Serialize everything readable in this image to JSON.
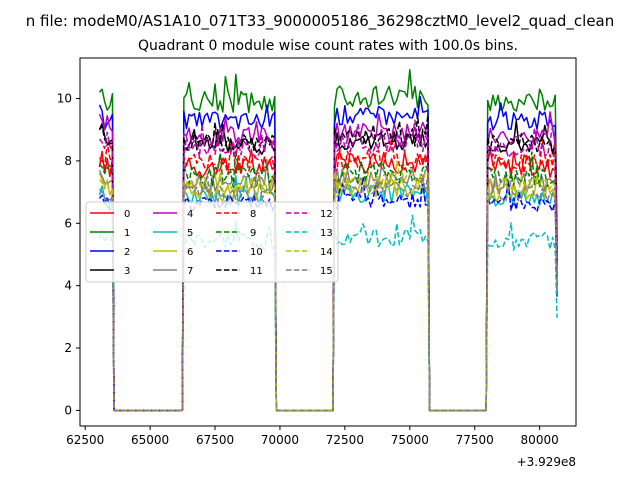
{
  "chart_data": {
    "type": "line",
    "suptitle": "n file: modeM0/AS1A10_071T33_9000005186_36298cztM0_level2_quad_clean",
    "title": "Quadrant 0 module wise count rates with 100.0s bins.",
    "xlabel": "",
    "ylabel": "",
    "x_offset_label": "+3.929e8",
    "xlim": [
      62300,
      81400
    ],
    "ylim": [
      -0.5,
      11.3
    ],
    "x_ticks": [
      62500,
      65000,
      67500,
      70000,
      72500,
      75000,
      77500,
      80000
    ],
    "x_tick_labels": [
      "62500",
      "65000",
      "67500",
      "70000",
      "72500",
      "75000",
      "77500",
      "80000"
    ],
    "y_ticks": [
      0,
      2,
      4,
      6,
      8,
      10
    ],
    "y_tick_labels": [
      "0",
      "2",
      "4",
      "6",
      "8",
      "10"
    ],
    "grid": false,
    "legend_position": "center-left",
    "segments": [
      {
        "start": 63050,
        "end": 63550
      },
      {
        "start": 66300,
        "end": 69800
      },
      {
        "start": 72100,
        "end": 75700
      },
      {
        "start": 78000,
        "end": 80650
      }
    ],
    "series": [
      {
        "name": "0",
        "color": "#ff0000",
        "dash": "solid",
        "level": 7.8,
        "first": [
          7.8,
          8.3,
          7.6
        ],
        "amp": 0.35
      },
      {
        "name": "1",
        "color": "#008000",
        "dash": "solid",
        "level": 9.9,
        "first": [
          10.2,
          10.3,
          9.9
        ],
        "amp": 0.35
      },
      {
        "name": "2",
        "color": "#0000ff",
        "dash": "solid",
        "level": 9.3,
        "first": [
          9.8,
          9.6,
          9.0
        ],
        "amp": 0.3
      },
      {
        "name": "3",
        "color": "#000000",
        "dash": "solid",
        "level": 8.5,
        "first": [
          9.0,
          9.2,
          8.8
        ],
        "amp": 0.3
      },
      {
        "name": "4",
        "color": "#bf00bf",
        "dash": "solid",
        "level": 8.8,
        "first": [
          9.5,
          9.3,
          9.0
        ],
        "amp": 0.3
      },
      {
        "name": "5",
        "color": "#00bfbf",
        "dash": "solid",
        "level": 6.8,
        "first": [
          6.9,
          7.2,
          6.8
        ],
        "amp": 0.3
      },
      {
        "name": "6",
        "color": "#bfbf00",
        "dash": "solid",
        "level": 7.0,
        "first": [
          7.6,
          7.4,
          7.2
        ],
        "amp": 0.3
      },
      {
        "name": "7",
        "color": "#808080",
        "dash": "solid",
        "level": 7.3,
        "first": [
          7.7,
          7.5,
          7.3
        ],
        "amp": 0.3
      },
      {
        "name": "8",
        "color": "#ff0000",
        "dash": "dashed",
        "level": 7.9,
        "first": [
          8.1,
          8.0,
          7.8
        ],
        "amp": 0.35
      },
      {
        "name": "9",
        "color": "#008000",
        "dash": "dashed",
        "level": 7.5,
        "first": [
          7.9,
          7.8,
          7.6
        ],
        "amp": 0.35
      },
      {
        "name": "10",
        "color": "#0000ff",
        "dash": "dashed",
        "level": 6.6,
        "first": [
          6.8,
          6.9,
          6.6
        ],
        "amp": 0.3
      },
      {
        "name": "11",
        "color": "#000000",
        "dash": "dashed",
        "level": 8.6,
        "first": [
          9.0,
          9.1,
          8.7
        ],
        "amp": 0.3
      },
      {
        "name": "12",
        "color": "#bf00bf",
        "dash": "dashed",
        "level": 8.4,
        "first": [
          8.7,
          8.6,
          8.4
        ],
        "amp": 0.3
      },
      {
        "name": "13",
        "color": "#00bfbf",
        "dash": "dashed",
        "level": 5.4,
        "first": [
          5.5,
          5.8,
          5.4
        ],
        "amp": 0.3
      },
      {
        "name": "14",
        "color": "#bfbf00",
        "dash": "dashed",
        "level": 7.2,
        "first": [
          7.4,
          7.3,
          7.1
        ],
        "amp": 0.3
      },
      {
        "name": "15",
        "color": "#808080",
        "dash": "dashed",
        "level": 6.9,
        "first": [
          7.1,
          7.0,
          6.8
        ],
        "amp": 0.3
      }
    ]
  }
}
